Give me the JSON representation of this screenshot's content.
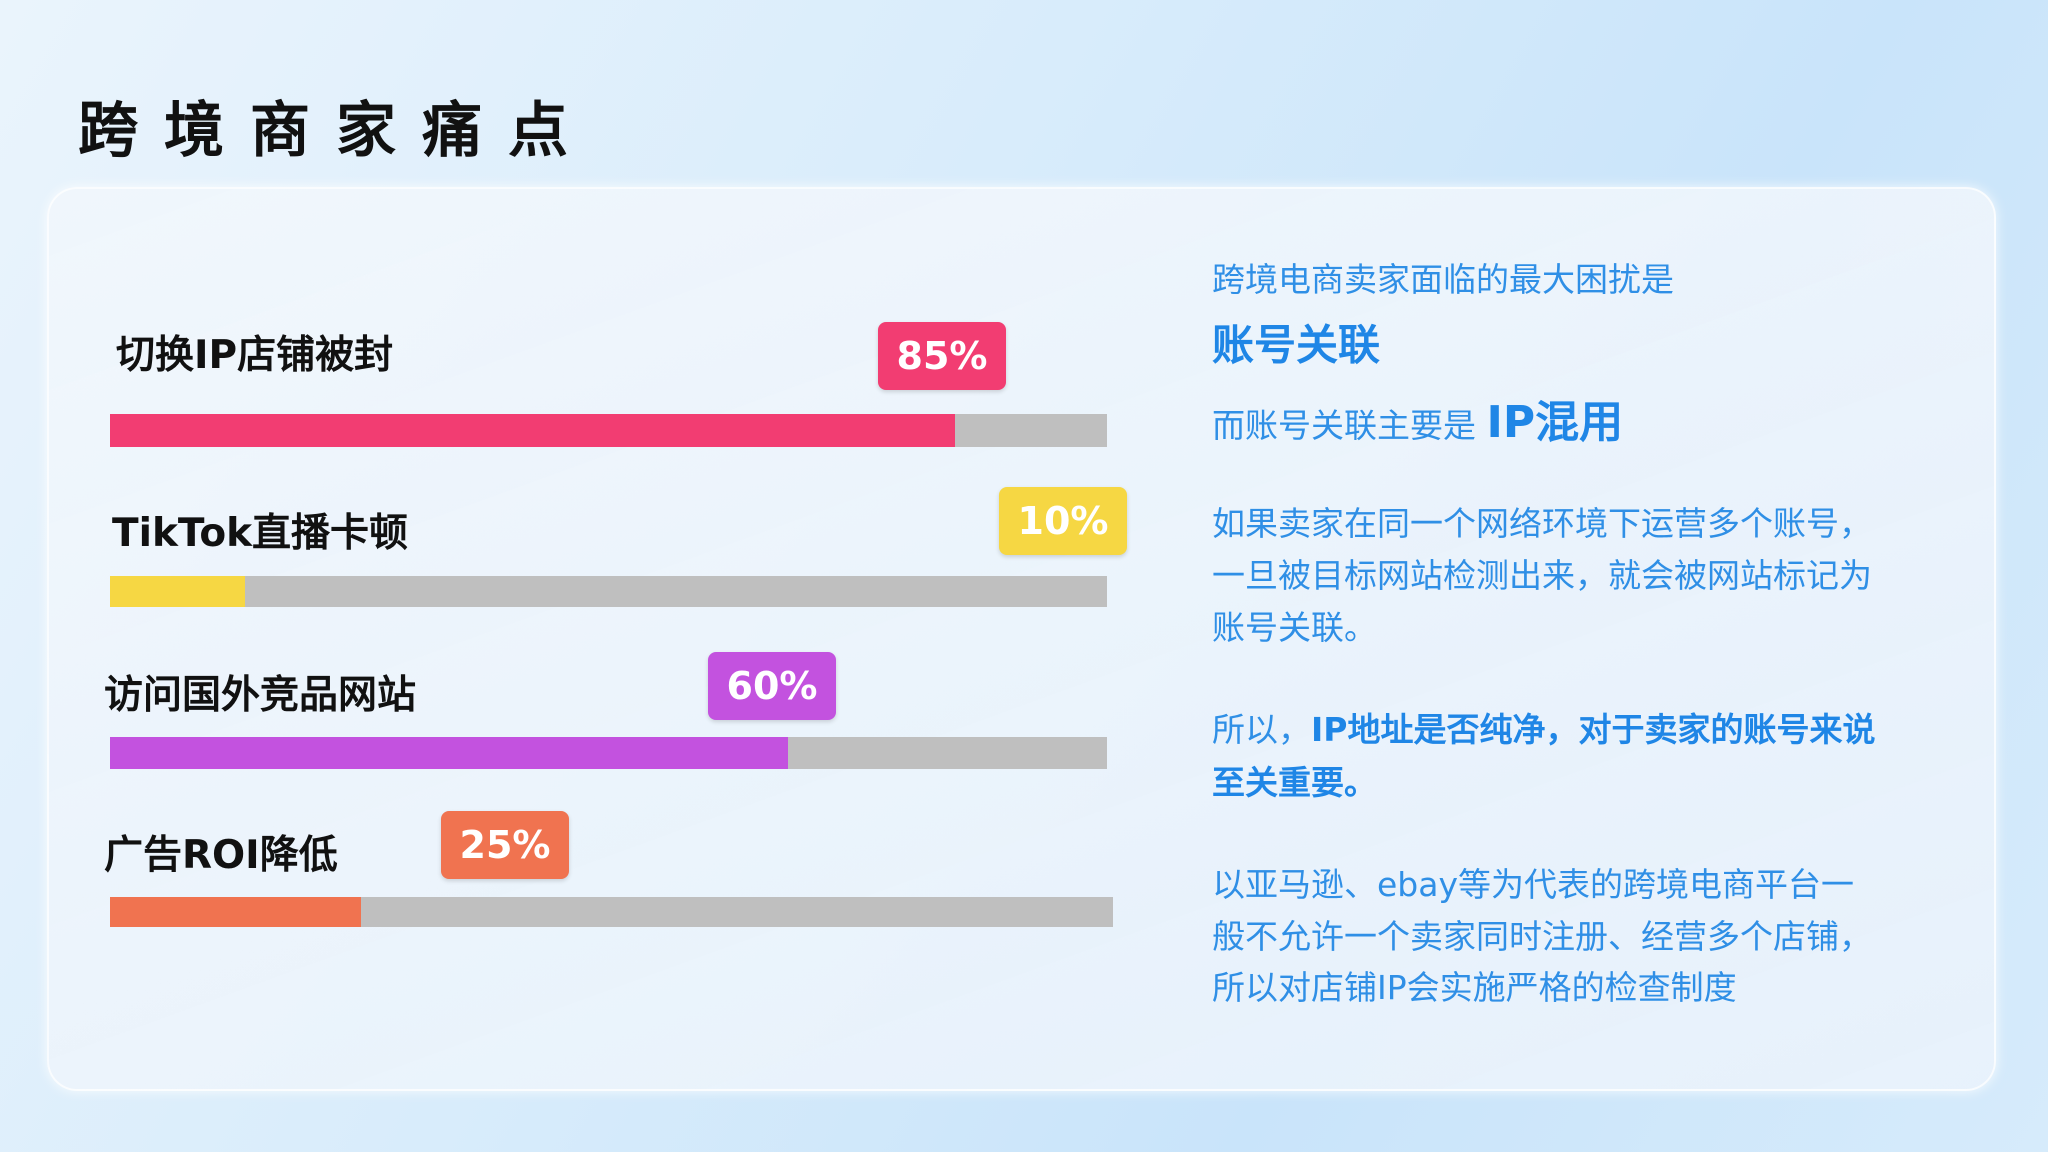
{
  "title": "跨境商家痛点",
  "bars": [
    {
      "label": "切换IP店铺被封",
      "value_label": "85%",
      "value": 85,
      "color": "#f23d72"
    },
    {
      "label": "TikTok直播卡顿",
      "value_label": "10%",
      "value": 10,
      "color": "#f6d743"
    },
    {
      "label": "访问国外竞品网站",
      "value_label": "60%",
      "value": 60,
      "color": "#c352df"
    },
    {
      "label": "广告ROI降低",
      "value_label": "25%",
      "value": 25,
      "color": "#f07350"
    }
  ],
  "track_color": "#bfbfbf",
  "right": {
    "line1": "跨境电商卖家面临的最大困扰是",
    "highlight1": "账号关联",
    "line3_prefix": "而账号关联主要是",
    "line3_highlight": "IP混用",
    "p1": [
      "如果卖家在同一个网络环境下运营多个账号，",
      "一旦被目标网站检测出来，就会被网站标记为",
      "账号关联。"
    ],
    "p2_prefix": "所以，",
    "p2_bold": "IP地址是否纯净，对于卖家的账号来说",
    "p2_line2": "至关重要。",
    "p3": [
      "以亚马逊、ebay等为代表的跨境电商平台一",
      "般不允许一个卖家同时注册、经营多个店铺，",
      "所以对店铺IP会实施严格的检查制度"
    ]
  }
}
